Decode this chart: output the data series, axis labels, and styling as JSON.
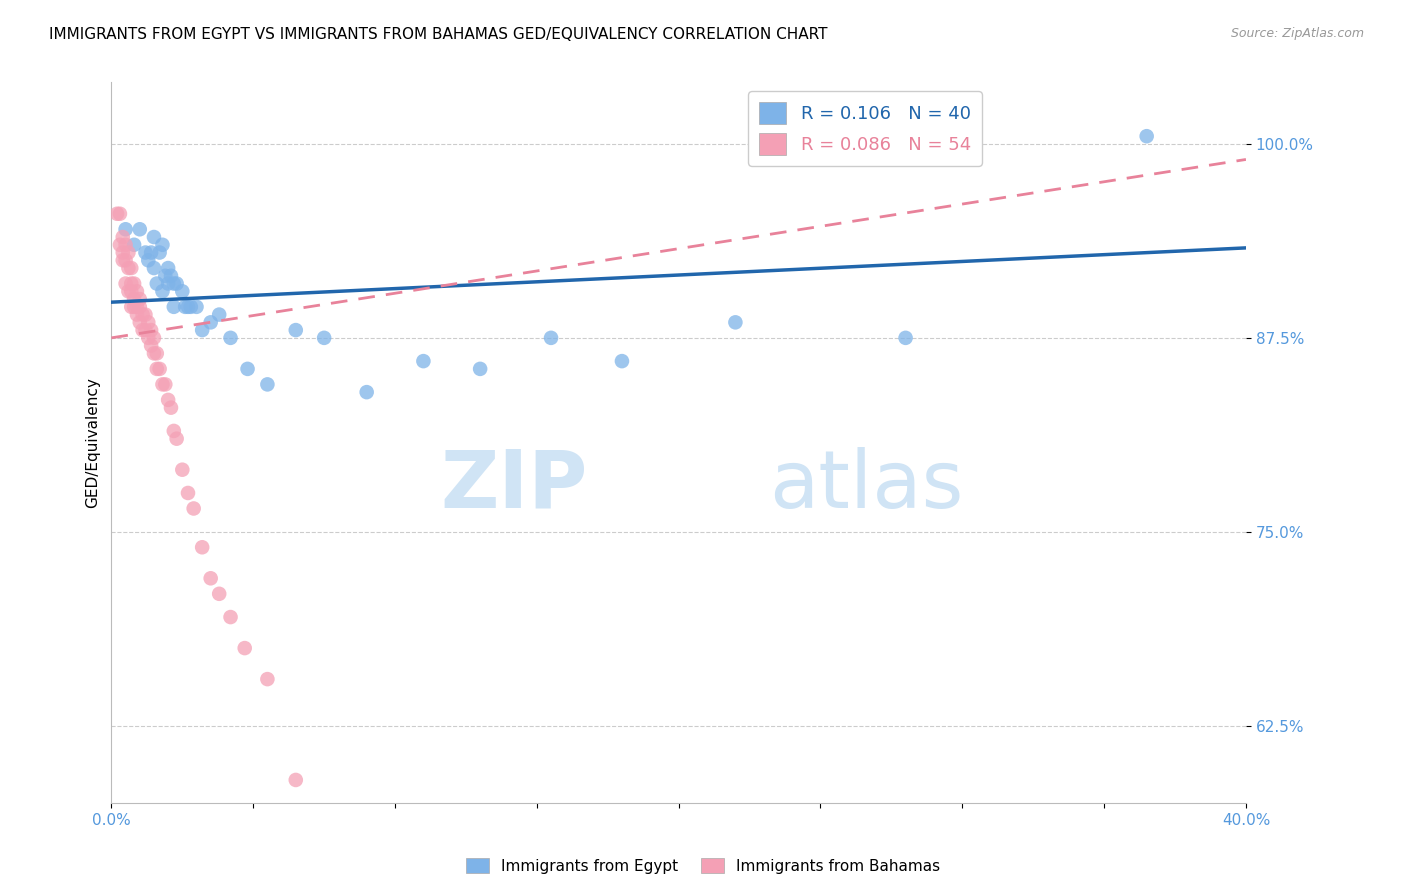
{
  "title": "IMMIGRANTS FROM EGYPT VS IMMIGRANTS FROM BAHAMAS GED/EQUIVALENCY CORRELATION CHART",
  "source": "Source: ZipAtlas.com",
  "ylabel": "GED/Equivalency",
  "legend_egypt": "Immigrants from Egypt",
  "legend_bahamas": "Immigrants from Bahamas",
  "R_egypt": 0.106,
  "N_egypt": 40,
  "R_bahamas": 0.086,
  "N_bahamas": 54,
  "xlim": [
    0.0,
    0.4
  ],
  "ylim": [
    0.575,
    1.04
  ],
  "yticks": [
    0.625,
    0.75,
    0.875,
    1.0
  ],
  "ytick_labels": [
    "62.5%",
    "75.0%",
    "87.5%",
    "100.0%"
  ],
  "xticks": [
    0.0,
    0.05,
    0.1,
    0.15,
    0.2,
    0.25,
    0.3,
    0.35,
    0.4
  ],
  "xtick_labels": [
    "0.0%",
    "",
    "",
    "",
    "",
    "",
    "",
    "",
    "40.0%"
  ],
  "color_egypt": "#7EB3E8",
  "color_bahamas": "#F4A0B5",
  "trendline_egypt_color": "#2166ac",
  "trendline_bahamas_color": "#E8829A",
  "grid_color": "#cccccc",
  "watermark_zip": "ZIP",
  "watermark_atlas": "atlas",
  "title_fontsize": 11,
  "axis_label_color": "#5599dd",
  "egypt_x": [
    0.005,
    0.008,
    0.01,
    0.012,
    0.013,
    0.014,
    0.015,
    0.015,
    0.016,
    0.017,
    0.018,
    0.018,
    0.019,
    0.02,
    0.02,
    0.021,
    0.022,
    0.022,
    0.023,
    0.025,
    0.026,
    0.027,
    0.028,
    0.03,
    0.032,
    0.035,
    0.038,
    0.042,
    0.048,
    0.055,
    0.065,
    0.075,
    0.09,
    0.11,
    0.13,
    0.155,
    0.18,
    0.22,
    0.28,
    0.365
  ],
  "egypt_y": [
    0.945,
    0.935,
    0.945,
    0.93,
    0.925,
    0.93,
    0.94,
    0.92,
    0.91,
    0.93,
    0.935,
    0.905,
    0.915,
    0.92,
    0.91,
    0.915,
    0.91,
    0.895,
    0.91,
    0.905,
    0.895,
    0.895,
    0.895,
    0.895,
    0.88,
    0.885,
    0.89,
    0.875,
    0.855,
    0.845,
    0.88,
    0.875,
    0.84,
    0.86,
    0.855,
    0.875,
    0.86,
    0.885,
    0.875,
    1.005
  ],
  "bahamas_x": [
    0.002,
    0.003,
    0.003,
    0.004,
    0.004,
    0.004,
    0.005,
    0.005,
    0.005,
    0.006,
    0.006,
    0.006,
    0.007,
    0.007,
    0.007,
    0.007,
    0.008,
    0.008,
    0.008,
    0.009,
    0.009,
    0.009,
    0.01,
    0.01,
    0.01,
    0.011,
    0.011,
    0.012,
    0.012,
    0.013,
    0.013,
    0.014,
    0.014,
    0.015,
    0.015,
    0.016,
    0.016,
    0.017,
    0.018,
    0.019,
    0.02,
    0.021,
    0.022,
    0.023,
    0.025,
    0.027,
    0.029,
    0.032,
    0.035,
    0.038,
    0.042,
    0.047,
    0.055,
    0.065
  ],
  "bahamas_y": [
    0.955,
    0.935,
    0.955,
    0.925,
    0.93,
    0.94,
    0.925,
    0.935,
    0.91,
    0.93,
    0.92,
    0.905,
    0.92,
    0.91,
    0.905,
    0.895,
    0.91,
    0.9,
    0.895,
    0.905,
    0.895,
    0.89,
    0.9,
    0.895,
    0.885,
    0.89,
    0.88,
    0.89,
    0.88,
    0.885,
    0.875,
    0.88,
    0.87,
    0.875,
    0.865,
    0.865,
    0.855,
    0.855,
    0.845,
    0.845,
    0.835,
    0.83,
    0.815,
    0.81,
    0.79,
    0.775,
    0.765,
    0.74,
    0.72,
    0.71,
    0.695,
    0.675,
    0.655,
    0.59
  ],
  "trendline_egypt_x0": 0.0,
  "trendline_egypt_y0": 0.898,
  "trendline_egypt_x1": 0.4,
  "trendline_egypt_y1": 0.933,
  "trendline_bahamas_x0": 0.0,
  "trendline_bahamas_y0": 0.875,
  "trendline_bahamas_x1": 0.4,
  "trendline_bahamas_y1": 0.99
}
